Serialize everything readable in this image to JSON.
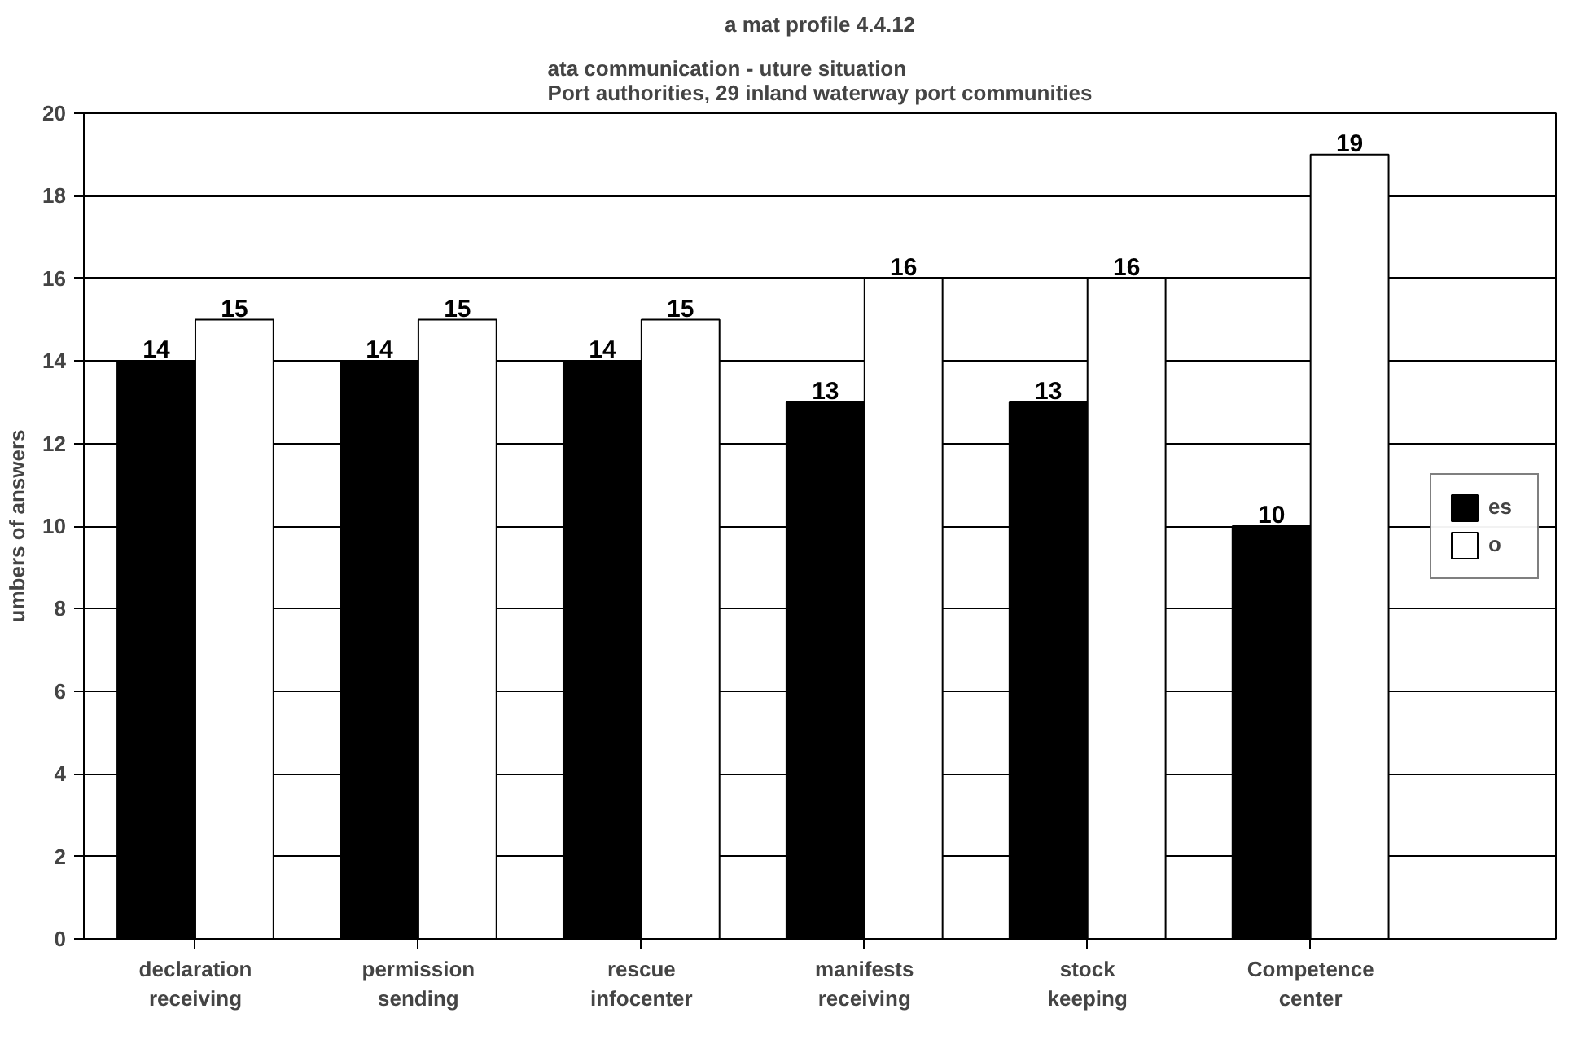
{
  "chart_data": {
    "type": "bar",
    "title": "a mat profile 4.4.12",
    "subtitle": "ata communication -  uture situation\nPort authorities, 29 inland waterway port communities",
    "ylabel": "umbers of answers",
    "categories": [
      "declaration receiving",
      "permission sending",
      "rescue infocenter",
      "manifests receiving",
      "stock keeping",
      "Competence center"
    ],
    "series": [
      {
        "name": "es",
        "color": "#000000",
        "values": [
          14,
          14,
          14,
          13,
          13,
          10
        ]
      },
      {
        "name": "o",
        "color": "#ffffff",
        "values": [
          15,
          15,
          15,
          16,
          16,
          19
        ]
      }
    ],
    "ylim": [
      0,
      20
    ],
    "yticks": [
      0,
      2,
      4,
      6,
      8,
      10,
      12,
      14,
      16,
      18,
      20
    ],
    "grid": "y",
    "legend": "right",
    "data_labels": true
  }
}
